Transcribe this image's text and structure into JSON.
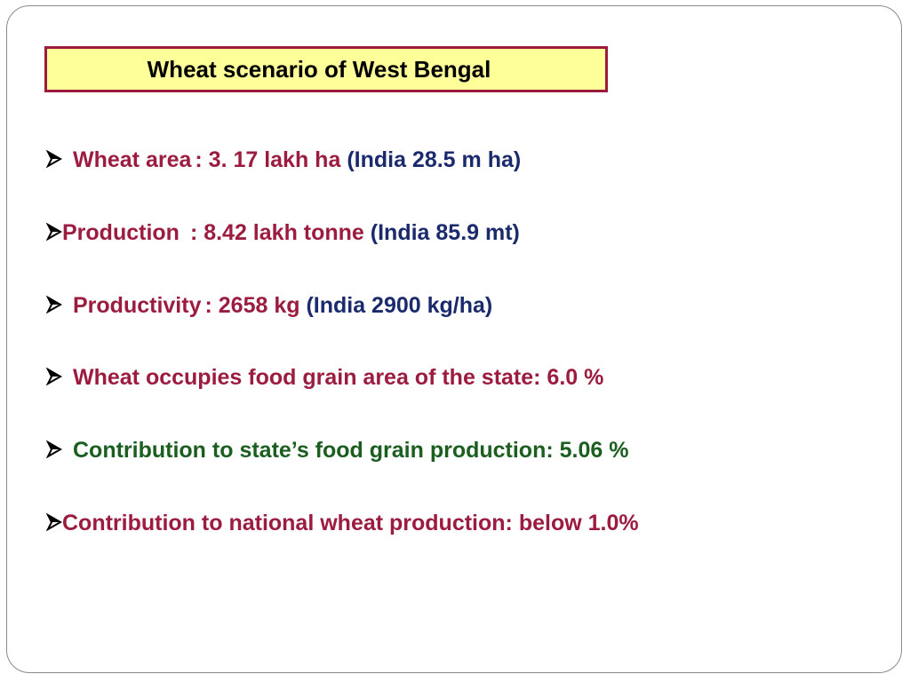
{
  "title": "Wheat scenario of West Bengal",
  "colors": {
    "maroon": "#9b1c3f",
    "navy": "#1a2a6c",
    "green": "#1b5e20",
    "title_bg": "#ffff99"
  },
  "bullet_icon": "arrow-bullet-icon",
  "bullets": [
    {
      "label": "Wheat area",
      "value": ": 3. 17 lakh ha",
      "note": "(India 28.5 m ha)"
    },
    {
      "label": "Production",
      "value": ": 8.42 lakh tonne",
      "note": "(India 85.9 mt)"
    },
    {
      "label": "Productivity",
      "value": ": 2658 kg",
      "note": "(India 2900 kg/ha)"
    },
    {
      "text": "Wheat occupies food grain area of the state: 6.0 %"
    },
    {
      "text": "Contribution to state’s food grain production:  5.06 %"
    },
    {
      "text": "Contribution to national wheat production:  below 1.0%"
    }
  ]
}
